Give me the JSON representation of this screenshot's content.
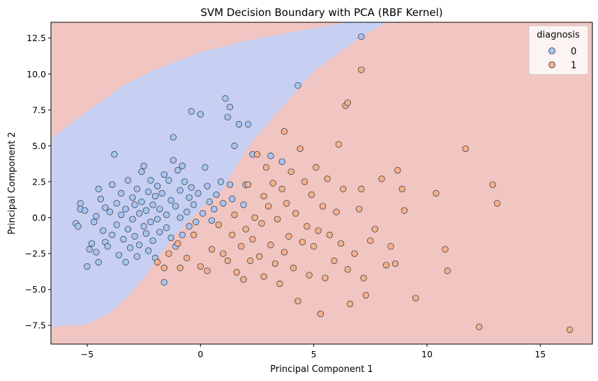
{
  "chart_data": {
    "type": "scatter",
    "title": "SVM Decision Boundary with PCA (RBF Kernel)",
    "xlabel": "Principal Component 1",
    "ylabel": "Principal Component 2",
    "xlim": [
      -6.6,
      17.3
    ],
    "ylim": [
      -8.8,
      13.6
    ],
    "x_ticks": [
      -5,
      0,
      5,
      10,
      15
    ],
    "y_ticks": [
      -7.5,
      -5.0,
      -2.5,
      0.0,
      2.5,
      5.0,
      7.5,
      10.0,
      12.5
    ],
    "x_tick_labels": [
      "−5",
      "0",
      "5",
      "10",
      "15"
    ],
    "y_tick_labels": [
      "−7.5",
      "−5.0",
      "−2.5",
      "0.0",
      "2.5",
      "5.0",
      "7.5",
      "10.0",
      "12.5"
    ],
    "grid": false,
    "legend": {
      "title": "diagnosis",
      "placement": "top-right"
    },
    "colors": {
      "class0_point": "#a7c4f3",
      "class1_point": "#f4b08f",
      "region0": "#c7d0f2",
      "region1": "#f0c5c2"
    },
    "decision_region_class0_polygon": [
      [
        -6.6,
        5.5
      ],
      [
        -5.0,
        7.4
      ],
      [
        -3.5,
        9.1
      ],
      [
        -2.0,
        10.3
      ],
      [
        0.0,
        11.5
      ],
      [
        2.0,
        12.3
      ],
      [
        4.0,
        12.9
      ],
      [
        6.5,
        13.6
      ],
      [
        8.2,
        13.6
      ],
      [
        7.0,
        12.5
      ],
      [
        5.0,
        10.2
      ],
      [
        3.5,
        7.5
      ],
      [
        2.2,
        5.2
      ],
      [
        1.0,
        2.0
      ],
      [
        0.0,
        0.6
      ],
      [
        -1.0,
        -1.0
      ],
      [
        -1.8,
        -2.6
      ],
      [
        -2.5,
        -4.2
      ],
      [
        -3.2,
        -5.5
      ],
      [
        -4.0,
        -6.6
      ],
      [
        -5.0,
        -7.4
      ],
      [
        -6.6,
        -7.6
      ]
    ],
    "series": [
      {
        "name": "0",
        "points": [
          [
            -5.5,
            -0.4
          ],
          [
            -5.4,
            -0.6
          ],
          [
            -5.3,
            0.6
          ],
          [
            -5.3,
            1.0
          ],
          [
            -5.1,
            0.5
          ],
          [
            -5.0,
            -3.4
          ],
          [
            -4.9,
            -2.2
          ],
          [
            -4.8,
            -1.8
          ],
          [
            -4.7,
            -0.3
          ],
          [
            -4.6,
            0.1
          ],
          [
            -4.6,
            -2.4
          ],
          [
            -4.5,
            -3.1
          ],
          [
            -4.5,
            2.0
          ],
          [
            -4.4,
            1.3
          ],
          [
            -4.3,
            -0.9
          ],
          [
            -4.2,
            0.7
          ],
          [
            -4.2,
            -1.7
          ],
          [
            -4.1,
            -2.0
          ],
          [
            -4.0,
            0.4
          ],
          [
            -3.9,
            -1.2
          ],
          [
            -3.9,
            2.3
          ],
          [
            -3.8,
            4.4
          ],
          [
            -3.7,
            -0.5
          ],
          [
            -3.7,
            1.0
          ],
          [
            -3.6,
            -2.6
          ],
          [
            -3.5,
            0.2
          ],
          [
            -3.5,
            1.7
          ],
          [
            -3.4,
            -1.5
          ],
          [
            -3.3,
            -3.1
          ],
          [
            -3.3,
            0.6
          ],
          [
            -3.2,
            2.6
          ],
          [
            -3.2,
            -0.8
          ],
          [
            -3.1,
            -2.1
          ],
          [
            -3.0,
            1.4
          ],
          [
            -3.0,
            -0.1
          ],
          [
            -2.9,
            0.9
          ],
          [
            -2.9,
            -1.3
          ],
          [
            -2.8,
            2.0
          ],
          [
            -2.8,
            -2.7
          ],
          [
            -2.7,
            0.3
          ],
          [
            -2.7,
            -1.9
          ],
          [
            -2.6,
            1.1
          ],
          [
            -2.6,
            3.2
          ],
          [
            -2.5,
            -0.6
          ],
          [
            -2.5,
            3.6
          ],
          [
            -2.4,
            0.5
          ],
          [
            -2.4,
            -1.1
          ],
          [
            -2.3,
            1.8
          ],
          [
            -2.3,
            -2.3
          ],
          [
            -2.2,
            2.6
          ],
          [
            -2.2,
            -0.3
          ],
          [
            -2.1,
            -1.6
          ],
          [
            -2.1,
            0.9
          ],
          [
            -2.0,
            1.5
          ],
          [
            -2.0,
            -2.8
          ],
          [
            -1.9,
            -0.1
          ],
          [
            -1.9,
            2.2
          ],
          [
            -1.8,
            -1.0
          ],
          [
            -1.8,
            0.6
          ],
          [
            -1.7,
            1.7
          ],
          [
            -1.6,
            -4.5
          ],
          [
            -1.6,
            3.0
          ],
          [
            -1.5,
            -0.7
          ],
          [
            -1.5,
            0.2
          ],
          [
            -1.4,
            2.6
          ],
          [
            -1.3,
            -1.4
          ],
          [
            -1.3,
            1.2
          ],
          [
            -1.2,
            4.0
          ],
          [
            -1.2,
            5.6
          ],
          [
            -1.1,
            0.8
          ],
          [
            -1.1,
            -2.0
          ],
          [
            -1.0,
            3.3
          ],
          [
            -0.9,
            0.0
          ],
          [
            -0.9,
            1.9
          ],
          [
            -0.8,
            -1.2
          ],
          [
            -0.8,
            3.6
          ],
          [
            -0.7,
            2.5
          ],
          [
            -0.6,
            0.4
          ],
          [
            -0.5,
            1.4
          ],
          [
            -0.5,
            -0.6
          ],
          [
            -0.4,
            7.4
          ],
          [
            -0.4,
            2.1
          ],
          [
            -0.3,
            0.9
          ],
          [
            -0.2,
            -0.3
          ],
          [
            -0.1,
            1.7
          ],
          [
            0.0,
            7.2
          ],
          [
            0.1,
            0.3
          ],
          [
            0.2,
            3.5
          ],
          [
            0.3,
            2.2
          ],
          [
            0.4,
            1.1
          ],
          [
            0.5,
            -0.2
          ],
          [
            0.6,
            0.6
          ],
          [
            0.7,
            1.6
          ],
          [
            0.9,
            2.5
          ],
          [
            1.0,
            1.0
          ],
          [
            1.1,
            8.3
          ],
          [
            1.2,
            7.0
          ],
          [
            1.3,
            7.7
          ],
          [
            1.3,
            2.3
          ],
          [
            1.4,
            1.3
          ],
          [
            1.5,
            5.0
          ],
          [
            1.7,
            6.5
          ],
          [
            1.9,
            0.9
          ],
          [
            2.0,
            2.3
          ],
          [
            2.1,
            6.5
          ],
          [
            2.3,
            4.4
          ],
          [
            3.1,
            4.3
          ],
          [
            3.6,
            3.9
          ],
          [
            4.3,
            9.2
          ],
          [
            7.1,
            12.6
          ]
        ]
      },
      {
        "name": "1",
        "points": [
          [
            -1.9,
            -3.1
          ],
          [
            -1.6,
            -3.5
          ],
          [
            -1.4,
            -2.5
          ],
          [
            -1.0,
            -1.8
          ],
          [
            -0.9,
            -3.5
          ],
          [
            -0.6,
            -2.8
          ],
          [
            -0.3,
            -1.2
          ],
          [
            0.0,
            -3.4
          ],
          [
            0.3,
            -3.7
          ],
          [
            0.5,
            -2.2
          ],
          [
            0.8,
            -0.5
          ],
          [
            1.0,
            -2.5
          ],
          [
            1.2,
            -3.0
          ],
          [
            1.4,
            -1.2
          ],
          [
            1.5,
            0.2
          ],
          [
            1.6,
            -3.8
          ],
          [
            1.8,
            -2.0
          ],
          [
            1.9,
            -4.3
          ],
          [
            2.0,
            -0.8
          ],
          [
            2.1,
            2.3
          ],
          [
            2.2,
            -3.0
          ],
          [
            2.3,
            -1.5
          ],
          [
            2.4,
            0.0
          ],
          [
            2.5,
            4.4
          ],
          [
            2.6,
            -2.7
          ],
          [
            2.7,
            -0.4
          ],
          [
            2.8,
            1.5
          ],
          [
            2.8,
            -4.1
          ],
          [
            2.9,
            3.5
          ],
          [
            3.0,
            0.8
          ],
          [
            3.1,
            -1.9
          ],
          [
            3.2,
            2.4
          ],
          [
            3.3,
            -3.2
          ],
          [
            3.4,
            -0.1
          ],
          [
            3.5,
            -4.6
          ],
          [
            3.6,
            2.0
          ],
          [
            3.7,
            -2.4
          ],
          [
            3.7,
            6.0
          ],
          [
            3.8,
            1.0
          ],
          [
            3.9,
            -1.3
          ],
          [
            4.0,
            3.2
          ],
          [
            4.1,
            -3.5
          ],
          [
            4.2,
            0.3
          ],
          [
            4.3,
            -5.8
          ],
          [
            4.4,
            4.8
          ],
          [
            4.5,
            -1.7
          ],
          [
            4.6,
            2.5
          ],
          [
            4.7,
            -0.6
          ],
          [
            4.8,
            -4.0
          ],
          [
            4.9,
            1.6
          ],
          [
            5.0,
            -2.0
          ],
          [
            5.1,
            3.5
          ],
          [
            5.2,
            -0.9
          ],
          [
            5.3,
            -6.7
          ],
          [
            5.4,
            0.8
          ],
          [
            5.5,
            -4.2
          ],
          [
            5.6,
            2.7
          ],
          [
            5.7,
            -1.2
          ],
          [
            5.9,
            -3.0
          ],
          [
            6.0,
            0.4
          ],
          [
            6.1,
            5.1
          ],
          [
            6.2,
            -1.8
          ],
          [
            6.3,
            2.0
          ],
          [
            6.4,
            7.8
          ],
          [
            6.5,
            8.0
          ],
          [
            6.5,
            -3.6
          ],
          [
            6.6,
            -6.0
          ],
          [
            6.8,
            -2.5
          ],
          [
            7.0,
            0.6
          ],
          [
            7.1,
            10.3
          ],
          [
            7.1,
            2.0
          ],
          [
            7.2,
            -4.2
          ],
          [
            7.3,
            -5.4
          ],
          [
            7.5,
            -1.6
          ],
          [
            7.7,
            -0.8
          ],
          [
            8.0,
            2.7
          ],
          [
            8.2,
            -3.3
          ],
          [
            8.4,
            -2.0
          ],
          [
            8.6,
            -3.2
          ],
          [
            8.7,
            3.3
          ],
          [
            8.9,
            2.0
          ],
          [
            9.0,
            0.5
          ],
          [
            9.5,
            -5.6
          ],
          [
            10.4,
            1.7
          ],
          [
            10.8,
            -2.2
          ],
          [
            10.9,
            -3.7
          ],
          [
            11.7,
            4.8
          ],
          [
            12.3,
            -7.6
          ],
          [
            12.9,
            2.3
          ],
          [
            13.1,
            1.0
          ],
          [
            16.3,
            -7.8
          ]
        ]
      }
    ]
  }
}
